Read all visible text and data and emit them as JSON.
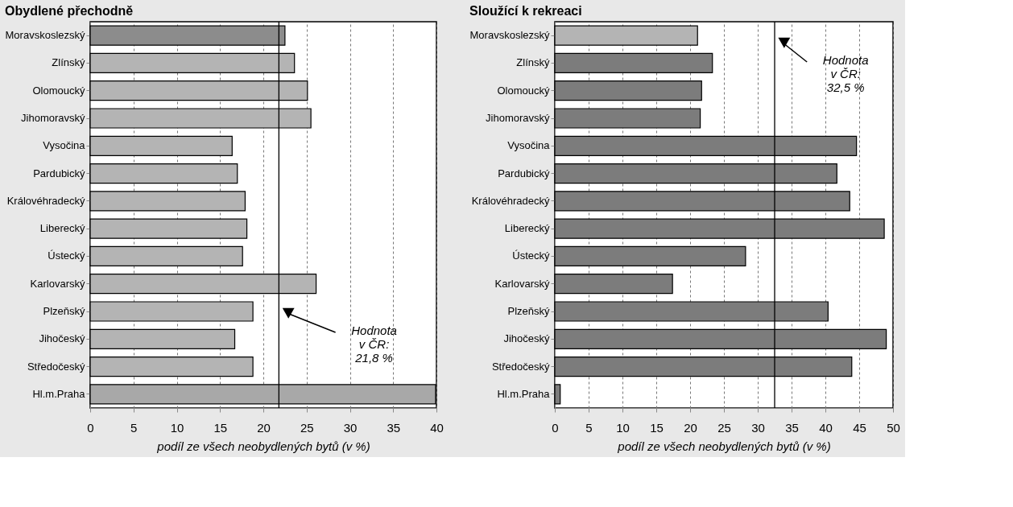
{
  "chart_data": [
    {
      "type": "bar",
      "orientation": "horizontal",
      "title": "Obydlené přechodně",
      "xlabel": "podíl ze všech neobydlených bytů (v %)",
      "categories": [
        "Moravskoslezský",
        "Zlínský",
        "Olomoucký",
        "Jihomoravský",
        "Vysočina",
        "Pardubický",
        "Královéhradecký",
        "Liberecký",
        "Ústecký",
        "Karlovarský",
        "Plzeňský",
        "Jihočeský",
        "Středočeský",
        "Hl.m.Praha"
      ],
      "values": [
        22.5,
        23.6,
        25.1,
        25.5,
        16.4,
        17.0,
        17.9,
        18.1,
        17.6,
        26.1,
        18.8,
        16.7,
        18.8,
        39.9
      ],
      "colors": [
        "#8c8c8c",
        "#b4b4b4",
        "#b4b4b4",
        "#b4b4b4",
        "#b4b4b4",
        "#b4b4b4",
        "#b4b4b4",
        "#b4b4b4",
        "#b4b4b4",
        "#b4b4b4",
        "#b4b4b4",
        "#b4b4b4",
        "#b4b4b4",
        "#a8a8a8"
      ],
      "xlim": [
        0,
        40
      ],
      "xticks": [
        0,
        5,
        10,
        15,
        20,
        25,
        30,
        35,
        40
      ],
      "grid": "x",
      "ref_lines": [
        {
          "axis": "x",
          "value": 21.8,
          "label": "Hodnota\nv ČR:\n21,8 %",
          "color": "#000000"
        }
      ]
    },
    {
      "type": "bar",
      "orientation": "horizontal",
      "title": "Sloužící  k rekreaci",
      "xlabel": "podíl ze všech neobydlených bytů (v %)",
      "categories": [
        "Moravskoslezský",
        "Zlínský",
        "Olomoucký",
        "Jihomoravský",
        "Vysočina",
        "Pardubický",
        "Královéhradecký",
        "Liberecký",
        "Ústecký",
        "Karlovarský",
        "Plzeňský",
        "Jihočeský",
        "Středočeský",
        "Hl.m.Praha"
      ],
      "values": [
        21.1,
        23.3,
        21.7,
        21.5,
        44.6,
        41.7,
        43.6,
        48.7,
        28.2,
        17.4,
        40.4,
        49.0,
        43.9,
        0.8
      ],
      "colors": [
        "#b4b4b4",
        "#7c7c7c",
        "#7c7c7c",
        "#7c7c7c",
        "#7c7c7c",
        "#7c7c7c",
        "#7c7c7c",
        "#7c7c7c",
        "#7c7c7c",
        "#7c7c7c",
        "#7c7c7c",
        "#7c7c7c",
        "#7c7c7c",
        "#7c7c7c"
      ],
      "xlim": [
        0,
        50
      ],
      "xticks": [
        0,
        5,
        10,
        15,
        20,
        25,
        30,
        35,
        40,
        45,
        50
      ],
      "grid": "x",
      "ref_lines": [
        {
          "axis": "x",
          "value": 32.5,
          "label": "Hodnota\nv ČR:\n32,5 %",
          "color": "#000000"
        }
      ]
    }
  ]
}
